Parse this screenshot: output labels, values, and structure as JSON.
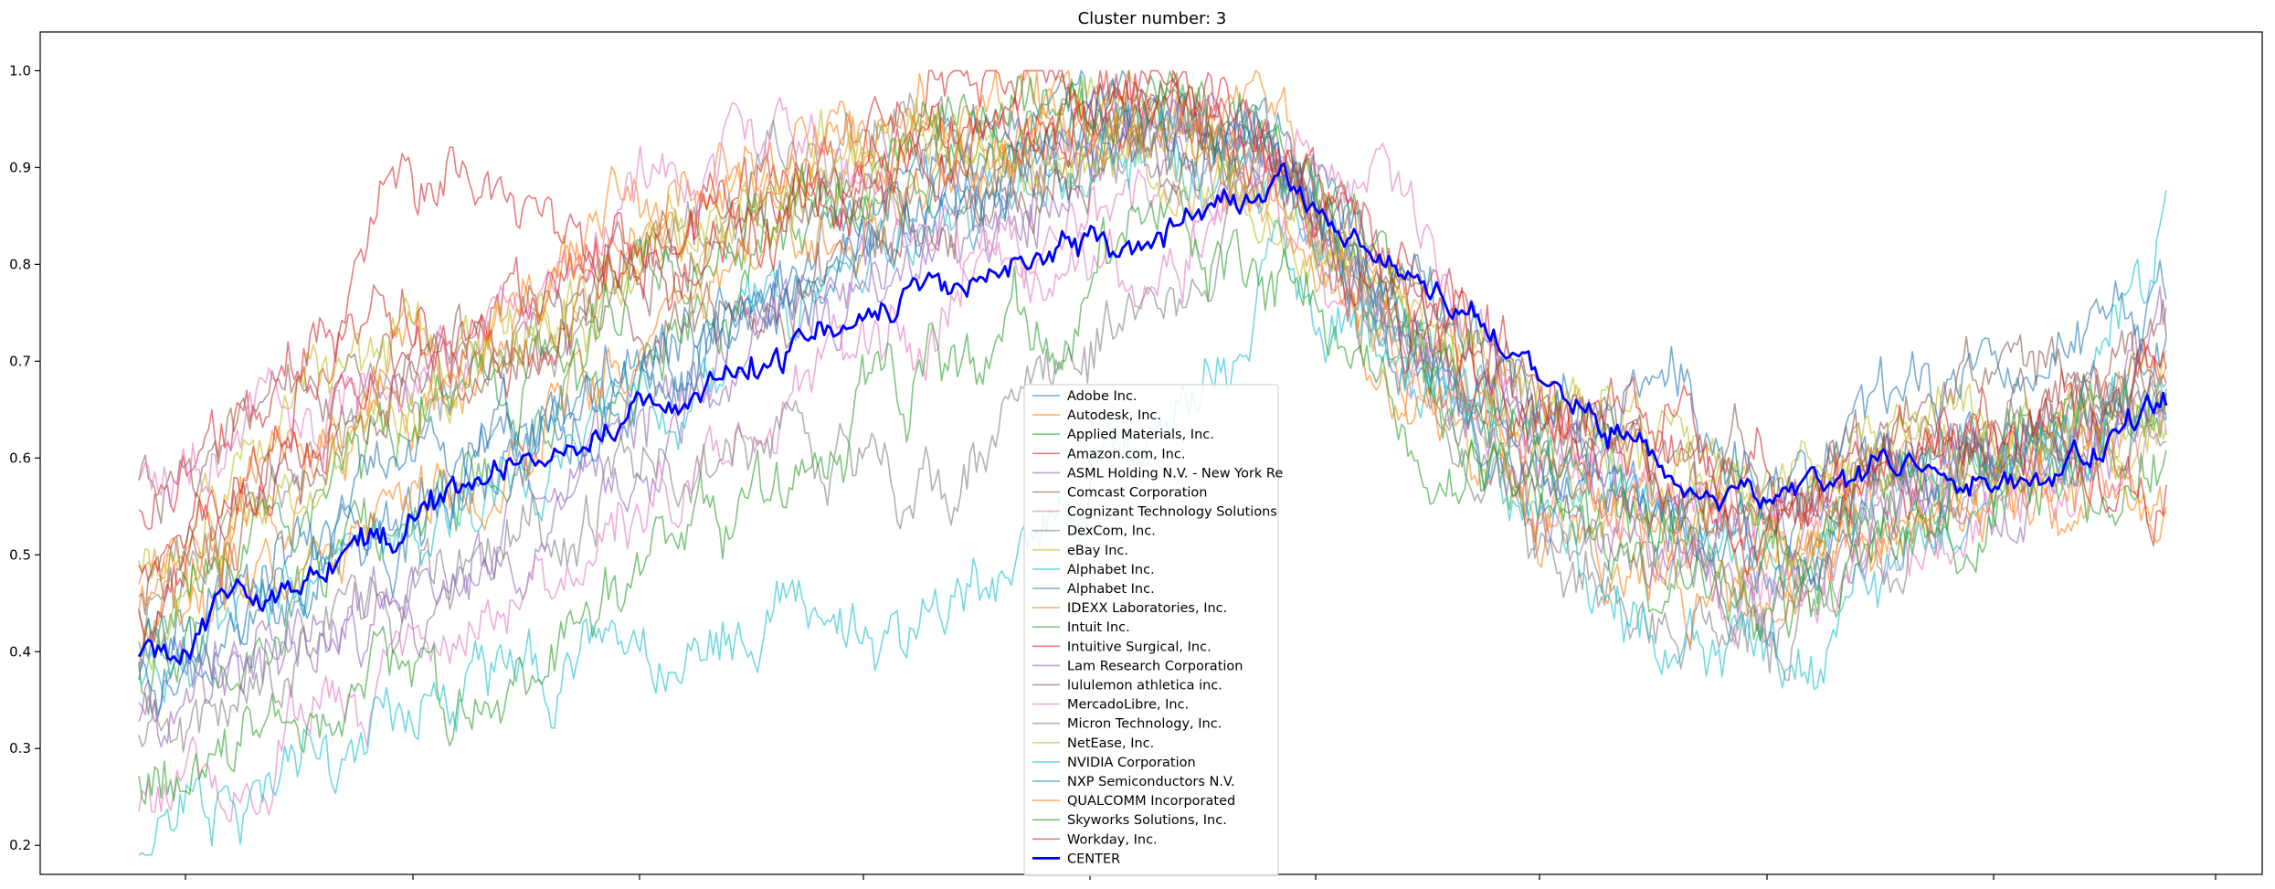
{
  "chart_data": {
    "type": "line",
    "title": "Cluster number: 3",
    "xlabel": "",
    "ylabel": "",
    "ylim": [
      0.17,
      1.04
    ],
    "yticks": [
      0.2,
      0.3,
      0.4,
      0.5,
      0.6,
      0.7,
      0.8,
      0.9,
      1.0
    ],
    "ytick_labels": [
      "0.2",
      "0.3",
      "0.4",
      "0.5",
      "0.6",
      "0.7",
      "0.8",
      "0.9",
      "1.0"
    ],
    "x_count": 640,
    "legend_position": "lower-center",
    "grid": false,
    "series": [
      {
        "name": "Adobe Inc.",
        "color": "#1f77b4",
        "anchors": [
          0.37,
          0.46,
          0.52,
          0.6,
          0.7,
          0.78,
          0.88,
          0.95,
          0.96,
          0.93,
          0.72,
          0.6,
          0.55,
          0.52,
          0.6,
          0.62,
          0.7
        ]
      },
      {
        "name": "Autodesk, Inc.",
        "color": "#ff7f0e",
        "anchors": [
          0.45,
          0.58,
          0.7,
          0.75,
          0.84,
          0.88,
          0.95,
          0.97,
          0.95,
          0.93,
          0.72,
          0.6,
          0.55,
          0.5,
          0.58,
          0.6,
          0.68
        ]
      },
      {
        "name": "Applied Materials, Inc.",
        "color": "#2ca02c",
        "anchors": [
          0.36,
          0.44,
          0.54,
          0.62,
          0.7,
          0.8,
          0.88,
          0.92,
          0.95,
          0.9,
          0.7,
          0.56,
          0.52,
          0.48,
          0.55,
          0.58,
          0.64
        ]
      },
      {
        "name": "Amazon.com, Inc.",
        "color": "#d62728",
        "anchors": [
          0.53,
          0.66,
          0.72,
          0.76,
          0.82,
          0.9,
          0.94,
          0.98,
          0.98,
          0.92,
          0.76,
          0.66,
          0.62,
          0.55,
          0.6,
          0.62,
          0.69
        ]
      },
      {
        "name": "ASML Holding N.V. - New York Re",
        "color": "#9467bd",
        "anchors": [
          0.35,
          0.4,
          0.44,
          0.5,
          0.62,
          0.72,
          0.8,
          0.86,
          0.92,
          0.9,
          0.72,
          0.6,
          0.55,
          0.5,
          0.58,
          0.62,
          0.7
        ]
      },
      {
        "name": "Comcast Corporation",
        "color": "#8c564b",
        "anchors": [
          0.59,
          0.63,
          0.7,
          0.72,
          0.78,
          0.84,
          0.88,
          0.9,
          0.94,
          0.9,
          0.76,
          0.62,
          0.6,
          0.56,
          0.64,
          0.68,
          0.72
        ]
      },
      {
        "name": "Cognizant Technology Solutions",
        "color": "#e377c2",
        "anchors": [
          0.26,
          0.3,
          0.37,
          0.45,
          0.55,
          0.65,
          0.72,
          0.8,
          0.86,
          0.84,
          0.72,
          0.6,
          0.56,
          0.52,
          0.58,
          0.62,
          0.66
        ]
      },
      {
        "name": "DexCom, Inc.",
        "color": "#7f7f7f",
        "anchors": [
          0.46,
          0.58,
          0.65,
          0.72,
          0.8,
          0.88,
          0.93,
          0.92,
          0.95,
          0.88,
          0.7,
          0.52,
          0.45,
          0.42,
          0.52,
          0.6,
          0.7
        ]
      },
      {
        "name": "eBay Inc.",
        "color": "#bcbd22",
        "anchors": [
          0.5,
          0.62,
          0.7,
          0.74,
          0.8,
          0.86,
          0.9,
          0.92,
          0.94,
          0.88,
          0.74,
          0.64,
          0.62,
          0.56,
          0.64,
          0.64,
          0.68
        ]
      },
      {
        "name": "Alphabet Inc.",
        "color": "#17becf",
        "anchors": [
          0.37,
          0.45,
          0.52,
          0.58,
          0.66,
          0.74,
          0.82,
          0.88,
          0.92,
          0.9,
          0.72,
          0.6,
          0.54,
          0.5,
          0.56,
          0.6,
          0.66
        ]
      },
      {
        "name": "Alphabet Inc.",
        "color": "#1f77b4",
        "anchors": [
          0.38,
          0.46,
          0.53,
          0.59,
          0.67,
          0.75,
          0.83,
          0.89,
          0.93,
          0.91,
          0.73,
          0.61,
          0.55,
          0.51,
          0.57,
          0.61,
          0.67
        ]
      },
      {
        "name": "IDEXX Laboratories, Inc.",
        "color": "#ff7f0e",
        "anchors": [
          0.44,
          0.56,
          0.66,
          0.76,
          0.86,
          0.9,
          0.94,
          0.94,
          0.92,
          0.86,
          0.66,
          0.52,
          0.48,
          0.46,
          0.52,
          0.56,
          0.58
        ]
      },
      {
        "name": "Intuit Inc.",
        "color": "#2ca02c",
        "anchors": [
          0.4,
          0.54,
          0.62,
          0.68,
          0.78,
          0.86,
          0.92,
          0.96,
          0.96,
          0.92,
          0.74,
          0.6,
          0.56,
          0.52,
          0.58,
          0.62,
          0.66
        ]
      },
      {
        "name": "Intuitive Surgical, Inc.",
        "color": "#d62728",
        "anchors": [
          0.47,
          0.6,
          0.68,
          0.72,
          0.8,
          0.86,
          0.9,
          0.94,
          0.96,
          0.92,
          0.8,
          0.68,
          0.64,
          0.58,
          0.62,
          0.64,
          0.7
        ]
      },
      {
        "name": "Lam Research Corporation",
        "color": "#9467bd",
        "anchors": [
          0.34,
          0.4,
          0.46,
          0.54,
          0.64,
          0.74,
          0.82,
          0.88,
          0.94,
          0.9,
          0.7,
          0.56,
          0.5,
          0.46,
          0.54,
          0.58,
          0.62
        ]
      },
      {
        "name": "lululemon athletica inc.",
        "color": "#8c564b",
        "anchors": [
          0.44,
          0.56,
          0.66,
          0.7,
          0.74,
          0.78,
          0.84,
          0.88,
          0.94,
          0.9,
          0.76,
          0.62,
          0.58,
          0.52,
          0.6,
          0.64,
          0.7
        ]
      },
      {
        "name": "MercadoLibre, Inc.",
        "color": "#e377c2",
        "anchors": [
          0.55,
          0.62,
          0.68,
          0.76,
          0.88,
          0.92,
          0.86,
          0.8,
          0.78,
          0.92,
          0.84,
          0.62,
          0.48,
          0.46,
          0.52,
          0.56,
          0.62
        ]
      },
      {
        "name": "Micron Technology, Inc.",
        "color": "#7f7f7f",
        "anchors": [
          0.3,
          0.38,
          0.45,
          0.5,
          0.58,
          0.62,
          0.56,
          0.66,
          0.76,
          0.86,
          0.72,
          0.54,
          0.48,
          0.44,
          0.56,
          0.62,
          0.68
        ]
      },
      {
        "name": "NetEase, Inc.",
        "color": "#bcbd22",
        "anchors": [
          0.42,
          0.55,
          0.64,
          0.7,
          0.8,
          0.88,
          0.92,
          0.88,
          0.9,
          0.86,
          0.74,
          0.66,
          0.62,
          0.54,
          0.6,
          0.62,
          0.64
        ]
      },
      {
        "name": "NVIDIA Corporation",
        "color": "#17becf",
        "anchors": [
          0.2,
          0.24,
          0.32,
          0.38,
          0.4,
          0.44,
          0.4,
          0.52,
          0.62,
          0.78,
          0.7,
          0.54,
          0.44,
          0.38,
          0.5,
          0.62,
          0.82
        ]
      },
      {
        "name": "NXP Semiconductors N.V.",
        "color": "#1f77b4",
        "anchors": [
          0.39,
          0.48,
          0.56,
          0.62,
          0.7,
          0.78,
          0.86,
          0.92,
          0.95,
          0.92,
          0.78,
          0.66,
          0.68,
          0.58,
          0.66,
          0.7,
          0.76
        ]
      },
      {
        "name": "QUALCOMM Incorporated",
        "color": "#ff7f0e",
        "anchors": [
          0.4,
          0.48,
          0.55,
          0.62,
          0.72,
          0.8,
          0.86,
          0.92,
          0.95,
          0.9,
          0.7,
          0.58,
          0.54,
          0.5,
          0.56,
          0.58,
          0.56
        ]
      },
      {
        "name": "Skyworks Solutions, Inc.",
        "color": "#2ca02c",
        "anchors": [
          0.28,
          0.32,
          0.38,
          0.36,
          0.48,
          0.58,
          0.68,
          0.74,
          0.82,
          0.8,
          0.64,
          0.54,
          0.48,
          0.42,
          0.5,
          0.56,
          0.6
        ]
      },
      {
        "name": "Workday, Inc.",
        "color": "#d62728",
        "anchors": [
          0.44,
          0.6,
          0.86,
          0.88,
          0.78,
          0.84,
          0.92,
          0.96,
          0.98,
          0.9,
          0.72,
          0.64,
          0.6,
          0.52,
          0.6,
          0.64,
          0.56
        ]
      },
      {
        "name": "CENTER",
        "color": "#0000ff",
        "bold": true,
        "anchors": [
          0.4,
          0.46,
          0.53,
          0.59,
          0.65,
          0.7,
          0.76,
          0.8,
          0.84,
          0.88,
          0.79,
          0.7,
          0.6,
          0.55,
          0.6,
          0.58,
          0.65
        ]
      }
    ]
  }
}
